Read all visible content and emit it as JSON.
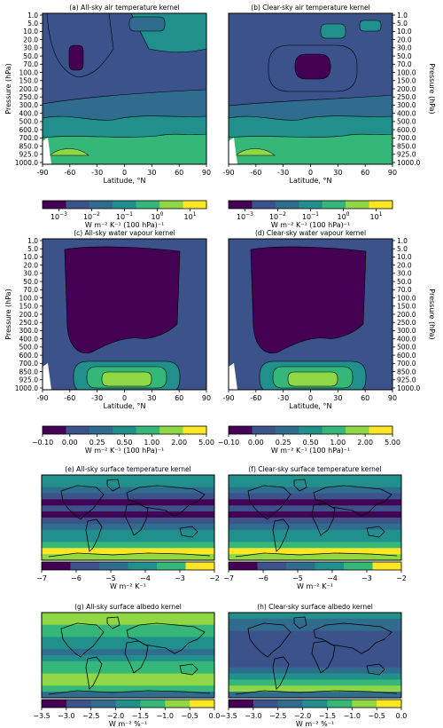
{
  "colors": {
    "contour_levels": [
      "#440154",
      "#3b528b",
      "#2f6c8e",
      "#21908d",
      "#35b779",
      "#8fd744",
      "#fde725"
    ],
    "land_outline": "#000000"
  },
  "chart_data": [
    {
      "type": "contour",
      "panel": "a",
      "title": "(a) All-sky air temperature kernel",
      "xlabel": "Latitude, °N",
      "ylabel": "Pressure (hPa)",
      "x_ticks": [
        "-90",
        "-60",
        "-30",
        "0",
        "30",
        "60",
        "90"
      ],
      "y_ticks": [
        "1.0",
        "5.0",
        "10.0",
        "20.0",
        "30.0",
        "50.0",
        "70.0",
        "100.0",
        "150.0",
        "200.0",
        "250.0",
        "300.0",
        "400.0",
        "500.0",
        "600.0",
        "700.0",
        "850.0",
        "925.0",
        "1000.0"
      ],
      "y_axis_side": "left",
      "colorbar": "temp"
    },
    {
      "type": "contour",
      "panel": "b",
      "title": "(b) Clear-sky air temperature kernel",
      "xlabel": "Latitude, °N",
      "ylabel": "Pressure (hPa)",
      "x_ticks": [
        "-90",
        "-60",
        "-30",
        "0",
        "30",
        "60",
        "90"
      ],
      "y_ticks": [
        "1.0",
        "5.0",
        "10.0",
        "20.0",
        "30.0",
        "50.0",
        "70.0",
        "100.0",
        "150.0",
        "200.0",
        "250.0",
        "300.0",
        "400.0",
        "500.0",
        "600.0",
        "700.0",
        "850.0",
        "925.0",
        "1000.0"
      ],
      "y_axis_side": "right",
      "colorbar": "temp"
    },
    {
      "type": "contour",
      "panel": "c",
      "title": "(c) All-sky water vapour kernel",
      "xlabel": "Latitude, °N",
      "ylabel": "Pressure (hPa)",
      "x_ticks": [
        "-90",
        "-60",
        "-30",
        "0",
        "30",
        "60",
        "90"
      ],
      "y_ticks": [
        "1.0",
        "5.0",
        "10.0",
        "20.0",
        "30.0",
        "50.0",
        "70.0",
        "100.0",
        "150.0",
        "200.0",
        "250.0",
        "300.0",
        "400.0",
        "500.0",
        "600.0",
        "700.0",
        "850.0",
        "925.0",
        "1000.0"
      ],
      "y_axis_side": "left",
      "colorbar": "wv"
    },
    {
      "type": "contour",
      "panel": "d",
      "title": "(d) Clear-sky water vapour kernel",
      "xlabel": "Latitude, °N",
      "ylabel": "Pressure (hPa)",
      "x_ticks": [
        "-90",
        "-60",
        "-30",
        "0",
        "30",
        "60",
        "90"
      ],
      "y_ticks": [
        "1.0",
        "5.0",
        "10.0",
        "20.0",
        "30.0",
        "50.0",
        "70.0",
        "100.0",
        "150.0",
        "200.0",
        "250.0",
        "300.0",
        "400.0",
        "500.0",
        "600.0",
        "700.0",
        "850.0",
        "925.0",
        "1000.0"
      ],
      "y_axis_side": "right",
      "colorbar": "wv"
    },
    {
      "type": "map",
      "panel": "e",
      "title": "(e) All-sky surface temperature kernel",
      "colorbar": "ts"
    },
    {
      "type": "map",
      "panel": "f",
      "title": "(f) Clear-sky surface temperature kernel",
      "colorbar": "ts"
    },
    {
      "type": "map",
      "panel": "g",
      "title": "(g) All-sky surface albedo kernel",
      "colorbar": "alb"
    },
    {
      "type": "map",
      "panel": "h",
      "title": "(h) Clear-sky surface albedo kernel",
      "colorbar": "alb"
    }
  ],
  "colorbars": {
    "temp": {
      "ticks": [
        "10",
        "10",
        "10",
        "10",
        "10"
      ],
      "exponents": [
        "−3",
        "−2",
        "−1",
        "0",
        "1"
      ],
      "label": "W m⁻² K⁻¹ (100 hPa)⁻¹"
    },
    "wv": {
      "ticks": [
        "−0.10",
        "0.00",
        "0.25",
        "0.50",
        "1.00",
        "2.00",
        "5.00"
      ],
      "label": "W m⁻² K⁻¹ (100 hPa)⁻¹"
    },
    "ts": {
      "ticks": [
        "−7",
        "−6",
        "−5",
        "−4",
        "−3",
        "−2"
      ],
      "label": "W m⁻² K⁻¹"
    },
    "alb": {
      "ticks": [
        "−3.5",
        "−3.0",
        "−2.5",
        "−2.0",
        "−1.5",
        "−1.0",
        "−0.5",
        "0.0"
      ],
      "label": "W m⁻² %⁻¹"
    }
  }
}
